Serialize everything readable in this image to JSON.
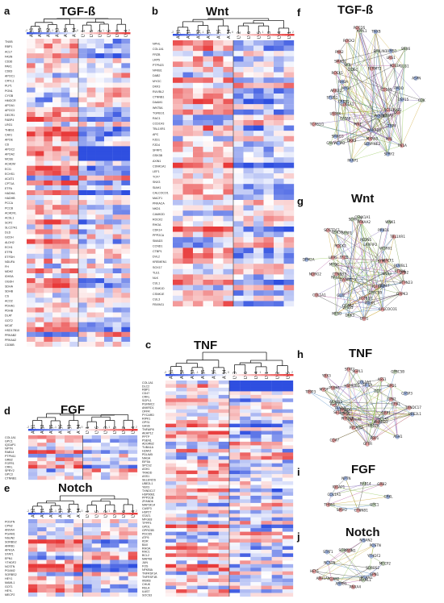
{
  "panels": [
    {
      "id": "a",
      "letter": "a",
      "title": "TGF-ß",
      "samples": [
        "AVJ1",
        "AVJ5",
        "AVJ2",
        "AVJ3",
        "AVJ6",
        "AVJ4",
        "LV1",
        "LV5",
        "LV2",
        "LV6",
        "LV3",
        "LV4"
      ],
      "scale": [
        "-2",
        "-1",
        "0",
        "1",
        "2"
      ],
      "genes": [
        "TNXB",
        "RBP1",
        "ACLY",
        "FASN",
        "CD36",
        "PAK1",
        "CD63",
        "APOC1",
        "CRYL1",
        "PLP1",
        "PON1",
        "CYGB",
        "HMGCR",
        "APOA1",
        "APOC3",
        "DECR1",
        "FABP4",
        "LRG1",
        "THBS1",
        "CAV1",
        "APOE",
        "CD",
        "APOC2",
        "APOA2",
        "MCEE",
        "ACADM",
        "ECI1",
        "ECHS1",
        "ACAT1",
        "CPT1A",
        "ETFA",
        "HADHA",
        "HADHB",
        "PCCA",
        "PCCB",
        "ACADVL",
        "ACSL1",
        "SCP2",
        "SLC27A1",
        "DLD",
        "GCDH",
        "ALDH2",
        "ECH1",
        "ETFB",
        "ETFDH",
        "NDUFA",
        "FH",
        "MDH2",
        "IDH3A",
        "OGDH",
        "SDHA",
        "SDHB",
        "CS",
        "ACO2",
        "PDHA1",
        "PDHB",
        "DLAT",
        "GOT2",
        "MCAT",
        "HSD17B10",
        "PRKAB2",
        "PRKAA2",
        "CD36B"
      ]
    },
    {
      "id": "b",
      "letter": "b",
      "title": "Wnt",
      "samples": [
        "AVJ1",
        "AVJ3",
        "AVJ2",
        "AVJ5",
        "AVJ6",
        "AVJ4",
        "LV2",
        "LV6",
        "LV5",
        "LV3",
        "LV4",
        "LV1"
      ],
      "scale": [
        "-2",
        "-1",
        "0",
        "1",
        "2"
      ],
      "genes": [
        "NPHL",
        "COL1A1",
        "FRZB",
        "LRP5",
        "PTPN23",
        "NFKB1",
        "DAB2",
        "MYOC",
        "DKK3",
        "RUVBL2",
        "CTNNB1",
        "DAAM1",
        "WNT5A",
        "TGFB1I1",
        "RAC1",
        "CCDC43",
        "TBL1XR1",
        "APC",
        "FZD1",
        "FZD4",
        "SFRP1",
        "GSK3B",
        "AXIN1",
        "CSNK1A1",
        "LEF1",
        "TCF7",
        "SNX3",
        "SIAH1",
        "CALCOCO1",
        "MACF1",
        "PRKACA",
        "NKD1",
        "CAMK2D",
        "ROCK2",
        "RHOA",
        "CDK14",
        "PPP2CA",
        "SMAD3",
        "CCND1",
        "CTBP1",
        "DVL2",
        "KREMEN1",
        "SOX17",
        "TLE1",
        "NLK",
        "CUL1",
        "CSNK1D",
        "CSNK1E",
        "CUL3",
        "FBXW11"
      ]
    },
    {
      "id": "c",
      "letter": "c",
      "title": "TNF",
      "samples": [
        "AVJ1",
        "AVJ2",
        "AVJ3",
        "AVJ5",
        "AVJ6",
        "AVJ4",
        "LV3",
        "LV6",
        "LV4",
        "LV1",
        "LV2",
        "LV5"
      ],
      "scale": [
        "-2",
        "-1",
        "0",
        "1",
        "2"
      ],
      "genes": [
        "COL1A1",
        "DLC2",
        "RBP1",
        "CD47",
        "CRKL",
        "SGPL1",
        "PGRMC2",
        "ANKRD1",
        "OFFR",
        "PYCARD",
        "RIPK1",
        "GPS1",
        "GAS6",
        "TNFAIP8",
        "AKAP12",
        "PPTP",
        "PSEN1",
        "ADGRB2",
        "TUBA1A",
        "H2AFZ",
        "PDLIM5",
        "NAGA",
        "EIF5A",
        "SPCS2",
        "ASH1",
        "TRADD",
        "ASS1",
        "SELENOS",
        "UBE2L1",
        "YBX3",
        "TXNDC17",
        "HSP90B1",
        "PPP2CB",
        "ZFAND6",
        "MAP3K14",
        "CASP3",
        "HSP27",
        "STAT1",
        "MFGE8",
        "TPPP3",
        "GPD1",
        "GPRC5B",
        "PDCD5",
        "ATF6",
        "KDR",
        "BAX",
        "RHOA",
        "RAC1",
        "BCL2",
        "MAPK8",
        "JUN",
        "FOS",
        "NFKBIA",
        "TNFRSF1A",
        "TNFRSF1B",
        "IKBKB",
        "CHUK",
        "RELA",
        "IL6ST",
        "SOCS3"
      ]
    },
    {
      "id": "d",
      "letter": "d",
      "title": "FGF",
      "samples": [
        "AVJ1",
        "AVJ2",
        "AVJ5",
        "AVJ6",
        "AVJ3",
        "AVJ4",
        "LV1",
        "LV6",
        "LV3",
        "LV5",
        "LV2",
        "LV4"
      ],
      "scale": [
        "-2",
        "-1",
        "0",
        "1",
        "2"
      ],
      "genes": [
        "COL1A1",
        "GPC1",
        "IQGAP1",
        "NPTN",
        "RAB14",
        "PTPN11",
        "GRB2",
        "FGFR1",
        "CRKL",
        "SPRY2",
        "GPC3",
        "CTNNB1"
      ]
    },
    {
      "id": "e",
      "letter": "e",
      "title": "Notch",
      "samples": [
        "AVJ2",
        "AVJ1",
        "AVJ5",
        "AVJ3",
        "AVJ6",
        "AVJ4",
        "LV1",
        "LV5",
        "LV2",
        "LV3",
        "LV6",
        "LV4"
      ],
      "scale": [
        "-2",
        "-1",
        "0",
        "1",
        "2"
      ],
      "genes": [
        "POSTN",
        "CPN2",
        "ANXA4",
        "PGAM1",
        "NSUN2",
        "SORBS2",
        "ARRB1",
        "APH1A",
        "STAT1",
        "EPN1",
        "YTHDF2",
        "NCSTN",
        "PGAM2",
        "SORBS2",
        "HEY1",
        "MAML1",
        "GOT1",
        "HEYL",
        "MECP2"
      ]
    }
  ],
  "networks": [
    {
      "id": "f",
      "letter": "f",
      "title": "TGF-ß",
      "nodes": [
        "USP15",
        "OGT",
        "TGFBRAP1",
        "STRAP",
        "LTBP4",
        "FN1A",
        "FKBP1A",
        "PML",
        "SPRY2",
        "ANKRD1",
        "MXRA5",
        "SERPINE2",
        "PARP1",
        "PIN1",
        "DKK3",
        "ACTA2",
        "SMAD3",
        "CAV1",
        "GATA6",
        "USP9X",
        "TGFB1I1",
        "COL1A1",
        "CREB1",
        "STUB1",
        "ARRB2",
        "MYOC",
        "ROCK1",
        "RHOA",
        "SMAD2",
        "PAK2",
        "SKIL",
        "CIDEC",
        "ROCK2",
        "PDCD5",
        "APPL1",
        "TNXB",
        "EMILIN1",
        "FERMT2",
        "LIMS1",
        "LRG1",
        "PDE3A",
        "SNX6",
        "GLG1",
        "CD109",
        "ASPN",
        "FMOD",
        "CDK"
      ]
    },
    {
      "id": "g",
      "letter": "g",
      "title": "Wnt",
      "nodes": [
        "DAB2",
        "SNX3",
        "PTPN23",
        "DAPK3",
        "USP47",
        "IGFBP2",
        "GPRC5B",
        "CALCOCO1",
        "PIXIP1",
        "LRP1",
        "TGFB1I1",
        "DKK3",
        "CCAR2",
        "VPS35",
        "MESD",
        "GLI3",
        "COL1A1",
        "DAAM1",
        "RAC1",
        "CTNNB1",
        "NDRG2",
        "MYOC",
        "DPM2A",
        "LRP5",
        "FRZB",
        "SOSTDC1",
        "ROCK2",
        "GSK3B",
        "SFRP1",
        "SDHAF2",
        "PRKAA2",
        "CSNK1A1",
        "PEDN5",
        "LRRFIP2",
        "PRKD1",
        "WNK1",
        "TBL1XR1",
        "WDR61",
        "STRN",
        "MACF1",
        "RUVBL1",
        "PTPRK"
      ]
    },
    {
      "id": "h",
      "letter": "h",
      "title": "TNF",
      "nodes": [
        "TXNDC17",
        "UBE2L1",
        "GBP1",
        "HCLS1",
        "ASH1",
        "ANKRD1",
        "UBC2K",
        "RBP1",
        "OFFR",
        "PYCARD",
        "TNFAIP8",
        "CD47",
        "PPP2CB",
        "GAS6",
        "SELENOS",
        "ZFAND6",
        "TRADD",
        "RIPK1",
        "AKAP12",
        "TPPP3",
        "MYOF",
        "PSEN1",
        "YBX3",
        "HSP90B1",
        "STAT1",
        "SGPL1",
        "COL1A1",
        "EIF5A",
        "ASS1",
        "GPRC5B",
        "DDT",
        "GPD1",
        "CASP3",
        "CPN2",
        "CRKL"
      ]
    },
    {
      "id": "i",
      "letter": "i",
      "title": "FGF",
      "nodes": [
        "CRKL",
        "GPC1",
        "CTNNB1",
        "SPRY2",
        "THBS1",
        "COL1A1",
        "IQGAP1",
        "NPTN",
        "RAB14",
        "GRB2"
      ]
    },
    {
      "id": "j",
      "letter": "j",
      "title": "Notch",
      "nodes": [
        "SORBS2",
        "EPN1",
        "PGAM1",
        "MAML1",
        "ANXA4",
        "ARRB1",
        "PGAM2",
        "APH1A",
        "HEY1",
        "NCSTN",
        "STAT1",
        "SORBS2",
        "PSEN1",
        "NISAN2",
        "POSTN",
        "YTHDF2",
        "MECP2"
      ]
    }
  ],
  "colors": {
    "high": "#e83a3a",
    "mid": "#ffffff",
    "low": "#2f4fe0"
  }
}
